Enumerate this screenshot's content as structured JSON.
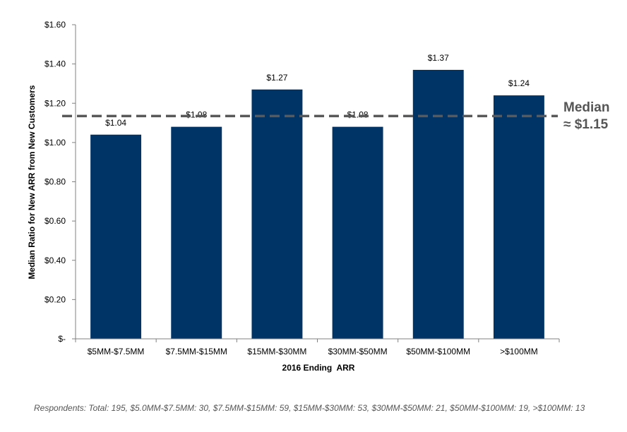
{
  "chart_data": {
    "type": "bar",
    "categories": [
      "$5MM-$7.5MM",
      "$7.5MM-$15MM",
      "$15MM-$30MM",
      "$30MM-$50MM",
      "$50MM-$100MM",
      ">$100MM"
    ],
    "values": [
      1.04,
      1.08,
      1.27,
      1.08,
      1.37,
      1.24
    ],
    "value_labels": [
      "$1.04",
      "$1.08",
      "$1.27",
      "$1.08",
      "$1.37",
      "$1.24"
    ],
    "xlabel": "2016 Ending  ARR",
    "ylabel": "Median Ratio for New ARR from New Customers",
    "ylim": [
      0,
      1.6
    ],
    "yticks": [
      0,
      0.2,
      0.4,
      0.6,
      0.8,
      1.0,
      1.2,
      1.4,
      1.6
    ],
    "ytick_labels": [
      "$-",
      "$0.20",
      "$0.40",
      "$0.60",
      "$0.80",
      "$1.00",
      "$1.20",
      "$1.40",
      "$1.60"
    ],
    "grid": false,
    "bar_color": "#003366",
    "reference_line": {
      "value": 1.135,
      "style": "dashed",
      "color": "#595959",
      "label_line1": "Median",
      "label_line2": "≈ $1.15"
    }
  },
  "footnote": "Respondents: Total: 195, $5.0MM-$7.5MM: 30, $7.5MM-$15MM: 59, $15MM-$30MM: 53, $30MM-$50MM: 21, $50MM-$100MM: 19, >$100MM: 13"
}
